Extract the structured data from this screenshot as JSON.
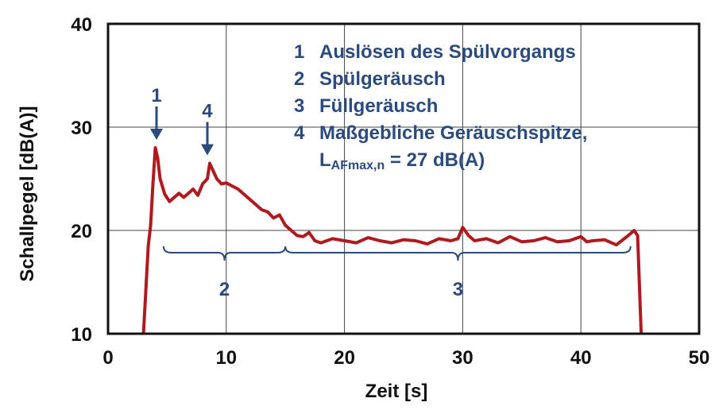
{
  "chart_data": {
    "type": "line",
    "title": "",
    "xlabel": "Zeit [s]",
    "ylabel": "Schallpegel [dB(A)]",
    "xlim": [
      0,
      50
    ],
    "ylim": [
      10,
      40
    ],
    "x_ticks": [
      "0",
      "10",
      "20",
      "30",
      "40",
      "50"
    ],
    "y_ticks": [
      "10",
      "20",
      "30",
      "40"
    ],
    "grid": true,
    "line_color": "#b01a1f",
    "annotation_color": "#2b4a7e",
    "series": [
      {
        "x": [
          3.0,
          3.4,
          3.6,
          3.8,
          4.0,
          4.2,
          4.4,
          4.8,
          5.2,
          5.6,
          6.0,
          6.4,
          6.8,
          7.2,
          7.6,
          8.0,
          8.4,
          8.6,
          8.8,
          9.2,
          9.6,
          10.0,
          10.5,
          11.0,
          11.5,
          12.0,
          12.5,
          13.0,
          13.5,
          14.0,
          14.5,
          15.0,
          15.5,
          16.0,
          16.5,
          17.0,
          17.5,
          18.0,
          19.0,
          20.0,
          21.0,
          22.0,
          23.0,
          24.0,
          25.0,
          26.0,
          27.0,
          28.0,
          29.0,
          29.6,
          30.0,
          30.5,
          31.0,
          32.0,
          33.0,
          34.0,
          35.0,
          36.0,
          37.0,
          38.0,
          39.0,
          40.0,
          40.5,
          41.0,
          42.0,
          43.0,
          44.0,
          44.5,
          44.8,
          45.1
        ],
        "y": [
          10.0,
          18.5,
          20.5,
          24.5,
          28.0,
          27.0,
          25.0,
          23.5,
          22.8,
          23.2,
          23.6,
          23.2,
          23.6,
          24.0,
          23.4,
          24.5,
          25.0,
          26.5,
          26.0,
          25.0,
          24.5,
          24.6,
          24.3,
          24.0,
          23.5,
          23.0,
          22.5,
          22.0,
          21.8,
          21.2,
          21.5,
          20.5,
          20.0,
          19.5,
          19.4,
          19.8,
          19.0,
          18.8,
          19.2,
          19.0,
          18.8,
          19.3,
          19.0,
          18.8,
          19.1,
          19.0,
          18.7,
          19.2,
          19.0,
          19.2,
          20.3,
          19.5,
          19.0,
          19.2,
          18.8,
          19.4,
          18.9,
          19.0,
          19.3,
          18.9,
          19.0,
          19.4,
          18.9,
          19.0,
          19.1,
          18.6,
          19.5,
          20.0,
          19.5,
          10.0
        ]
      }
    ],
    "legend_items": [
      {
        "num": "1",
        "text": "Auslösen des Spülvorgangs"
      },
      {
        "num": "2",
        "text": "Spülgeräusch"
      },
      {
        "num": "3",
        "text": "Füllgeräusch"
      },
      {
        "num": "4",
        "text": "Maßgebliche Geräuschspitze,"
      }
    ],
    "legend_formula": {
      "main": "L",
      "sub": "AFmax,n",
      "rest": " = 27 dB(A)"
    },
    "arrows": [
      {
        "label": "1",
        "x": 4.1,
        "y": 28.0
      },
      {
        "label": "4",
        "x": 8.4,
        "y": 26.5
      }
    ],
    "braces": [
      {
        "label": "2",
        "x_start": 4.7,
        "x_end": 15.0
      },
      {
        "label": "3",
        "x_start": 15.0,
        "x_end": 44.2
      }
    ]
  }
}
